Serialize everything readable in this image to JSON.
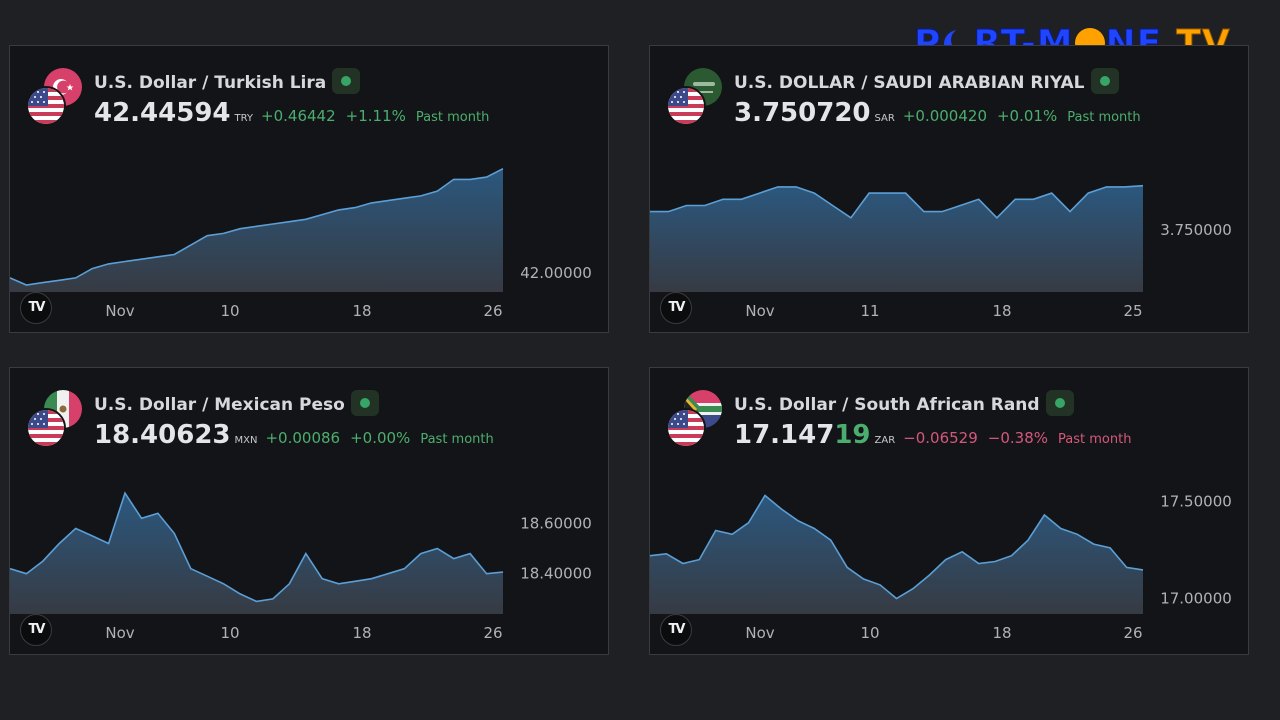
{
  "logo": {
    "part1": "P",
    "part2": "RT-M",
    "part3": "NE",
    "part4": "TV"
  },
  "widgets": [
    {
      "title": "U.S. Dollar / Turkish Lira",
      "price": "42.44594",
      "price_highlight": "",
      "currency": "TRY",
      "change": "+0.46442",
      "change_pct": "+1.11%",
      "period": "Past month",
      "direction": "pos"
    },
    {
      "title": "U.S. DOLLAR / SAUDI ARABIAN RIYAL",
      "price": "3.750720",
      "price_highlight": "",
      "currency": "SAR",
      "change": "+0.000420",
      "change_pct": "+0.01%",
      "period": "Past month",
      "direction": "pos"
    },
    {
      "title": "U.S. Dollar / Mexican Peso",
      "price": "18.40623",
      "price_highlight": "",
      "currency": "MXN",
      "change": "+0.00086",
      "change_pct": "+0.00%",
      "period": "Past month",
      "direction": "pos"
    },
    {
      "title": "U.S. Dollar / South African Rand",
      "price": "17.147",
      "price_highlight": "19",
      "currency": "ZAR",
      "change": "−0.06529",
      "change_pct": "−0.38%",
      "period": "Past month",
      "direction": "neg"
    }
  ],
  "chart_data": [
    {
      "type": "area",
      "title": "U.S. Dollar / Turkish Lira",
      "x_ticks": [
        "Nov",
        "10",
        "18",
        "26"
      ],
      "y_ticks": [
        {
          "value": 42.0,
          "label": "42.00000"
        }
      ],
      "ylim": [
        41.92,
        42.5
      ],
      "x": [
        0,
        1,
        2,
        3,
        4,
        5,
        6,
        7,
        8,
        9,
        10,
        11,
        12,
        13,
        14,
        15,
        16,
        17,
        18,
        19,
        20,
        21,
        22,
        23,
        24,
        25,
        26,
        27,
        28,
        29,
        30
      ],
      "values": [
        41.98,
        41.95,
        41.96,
        41.97,
        41.98,
        42.02,
        42.04,
        42.05,
        42.06,
        42.07,
        42.08,
        42.12,
        42.16,
        42.17,
        42.19,
        42.2,
        42.21,
        42.22,
        42.23,
        42.25,
        42.27,
        42.28,
        42.3,
        42.31,
        42.32,
        42.33,
        42.35,
        42.4,
        42.4,
        42.41,
        42.44594
      ]
    },
    {
      "type": "area",
      "title": "U.S. DOLLAR / SAUDI ARABIAN RIYAL",
      "x_ticks": [
        "Nov",
        "11",
        "18",
        "25"
      ],
      "y_ticks": [
        {
          "value": 3.75,
          "label": "3.750000"
        }
      ],
      "ylim": [
        3.749,
        3.7512
      ],
      "x": [
        0,
        1,
        2,
        3,
        4,
        5,
        6,
        7,
        8,
        9,
        10,
        11,
        12,
        13,
        14,
        15,
        16,
        17,
        18,
        19,
        20,
        21,
        22,
        23,
        24,
        25,
        26,
        27
      ],
      "values": [
        3.7503,
        3.7503,
        3.7504,
        3.7504,
        3.7505,
        3.7505,
        3.7506,
        3.7507,
        3.7507,
        3.7506,
        3.7504,
        3.7502,
        3.7506,
        3.7506,
        3.7506,
        3.7503,
        3.7503,
        3.7504,
        3.7505,
        3.7502,
        3.7505,
        3.7505,
        3.7506,
        3.7503,
        3.7506,
        3.7507,
        3.7507,
        3.75072
      ]
    },
    {
      "type": "area",
      "title": "U.S. Dollar / Mexican Peso",
      "x_ticks": [
        "Nov",
        "10",
        "18",
        "26"
      ],
      "y_ticks": [
        {
          "value": 18.6,
          "label": "18.60000"
        },
        {
          "value": 18.4,
          "label": "18.40000"
        }
      ],
      "ylim": [
        18.24,
        18.78
      ],
      "x": [
        0,
        1,
        2,
        3,
        4,
        5,
        6,
        7,
        8,
        9,
        10,
        11,
        12,
        13,
        14,
        15,
        16,
        17,
        18,
        19,
        20,
        21,
        22,
        23,
        24,
        25,
        26,
        27,
        28,
        29,
        30
      ],
      "values": [
        18.42,
        18.4,
        18.45,
        18.52,
        18.58,
        18.55,
        18.52,
        18.72,
        18.62,
        18.64,
        18.56,
        18.42,
        18.39,
        18.36,
        18.32,
        18.29,
        18.3,
        18.36,
        18.48,
        18.38,
        18.36,
        18.37,
        18.38,
        18.4,
        18.42,
        18.48,
        18.5,
        18.46,
        18.48,
        18.4,
        18.40623
      ]
    },
    {
      "type": "area",
      "title": "U.S. Dollar / South African Rand",
      "x_ticks": [
        "Nov",
        "10",
        "18",
        "26"
      ],
      "y_ticks": [
        {
          "value": 17.5,
          "label": "17.50000"
        },
        {
          "value": 17.0,
          "label": "17.00000"
        }
      ],
      "ylim": [
        16.92,
        17.62
      ],
      "x": [
        0,
        1,
        2,
        3,
        4,
        5,
        6,
        7,
        8,
        9,
        10,
        11,
        12,
        13,
        14,
        15,
        16,
        17,
        18,
        19,
        20,
        21,
        22,
        23,
        24,
        25,
        26,
        27,
        28,
        29,
        30
      ],
      "values": [
        17.22,
        17.23,
        17.18,
        17.2,
        17.35,
        17.33,
        17.39,
        17.53,
        17.46,
        17.4,
        17.36,
        17.3,
        17.16,
        17.1,
        17.07,
        17.0,
        17.05,
        17.12,
        17.2,
        17.24,
        17.18,
        17.19,
        17.22,
        17.3,
        17.43,
        17.36,
        17.33,
        17.28,
        17.26,
        17.16,
        17.14719
      ]
    }
  ]
}
